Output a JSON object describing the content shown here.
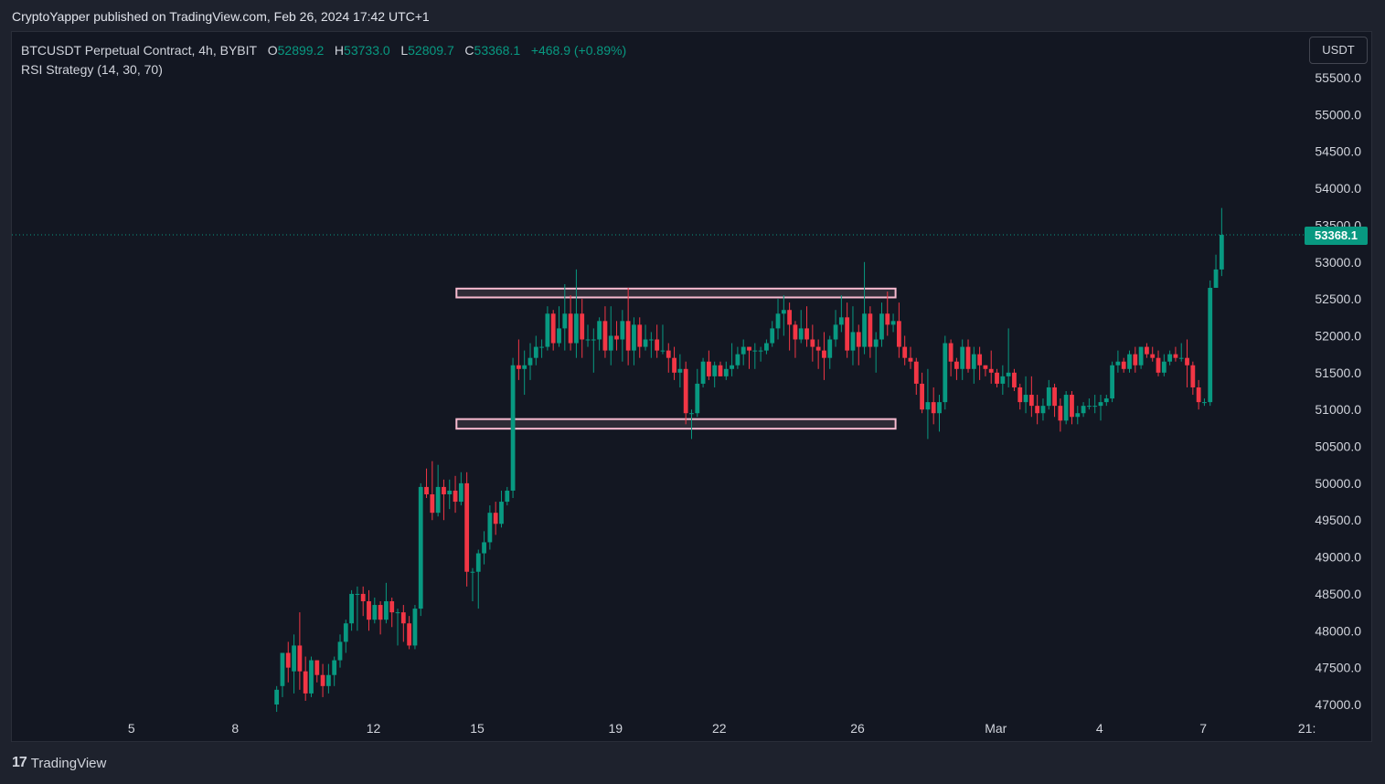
{
  "header": {
    "published_line": "CryptoYapper published on TradingView.com, Feb 26, 2024 17:42 UTC+1"
  },
  "legend": {
    "symbol_line": "BTCUSDT Perpetual Contract, 4h, BYBIT",
    "o_label": "O",
    "o_value": "52899.2",
    "h_label": "H",
    "h_value": "53733.0",
    "l_label": "L",
    "l_value": "52809.7",
    "c_label": "C",
    "c_value": "53368.1",
    "change": "+468.9 (+0.89%)",
    "indicator": "RSI Strategy (14, 30, 70)"
  },
  "currency_button": "USDT",
  "last_price_label": "53368.1",
  "footer": {
    "brand": "TradingView",
    "logo_glyph": "17"
  },
  "colors": {
    "up": "#089981",
    "down": "#f23645",
    "box_border": "#f8bbd0",
    "background": "#131722"
  },
  "chart_data": {
    "type": "candlestick",
    "symbol": "BTCUSDT",
    "interval": "4h",
    "ylim": [
      46850,
      55850
    ],
    "y_ticks": [
      47000,
      47500,
      48000,
      48500,
      49000,
      49500,
      50000,
      50500,
      51000,
      51500,
      52000,
      52500,
      53000,
      53500,
      54000,
      54500,
      55000,
      55500
    ],
    "y_tick_labels": [
      "47000.0",
      "47500.0",
      "48000.0",
      "48500.0",
      "49000.0",
      "49500.0",
      "50000.0",
      "50500.0",
      "51000.0",
      "51500.0",
      "52000.0",
      "52500.0",
      "53000.0",
      "53500.0",
      "54000.0",
      "54500.0",
      "55000.0",
      "55500.0"
    ],
    "x_tick_labels": [
      "5",
      "8",
      "12",
      "15",
      "19",
      "22",
      "26",
      "Mar",
      "4",
      "7",
      "21:"
    ],
    "x_tick_days": [
      5,
      8,
      12,
      15,
      19,
      22,
      26,
      30,
      33,
      36,
      39
    ],
    "last_price": 53368.1,
    "zones": [
      {
        "name": "resistance",
        "top": 52640,
        "bottom": 52520,
        "from_day": 14.4,
        "to_day": 27.1
      },
      {
        "name": "support",
        "top": 50870,
        "bottom": 50740,
        "from_day": 14.4,
        "to_day": 27.1
      }
    ],
    "candles": [
      [
        47000,
        47200,
        46900,
        47250
      ],
      [
        47250,
        47700,
        47100,
        47700
      ],
      [
        47700,
        47500,
        47300,
        47850
      ],
      [
        47450,
        47800,
        47150,
        47950
      ],
      [
        47800,
        47450,
        47200,
        48250
      ],
      [
        47450,
        47150,
        47050,
        47650
      ],
      [
        47150,
        47600,
        47100,
        47650
      ],
      [
        47600,
        47400,
        47300,
        47600
      ],
      [
        47400,
        47250,
        47100,
        47550
      ],
      [
        47250,
        47400,
        47150,
        47550
      ],
      [
        47400,
        47600,
        47250,
        47650
      ],
      [
        47600,
        47850,
        47500,
        47950
      ],
      [
        47850,
        48100,
        47700,
        48150
      ],
      [
        48100,
        48500,
        48000,
        48550
      ],
      [
        48500,
        48500,
        48000,
        48600
      ],
      [
        48500,
        48400,
        48200,
        48600
      ],
      [
        48400,
        48150,
        48000,
        48550
      ],
      [
        48150,
        48350,
        48100,
        48450
      ],
      [
        48350,
        48150,
        47950,
        48400
      ],
      [
        48150,
        48400,
        48100,
        48650
      ],
      [
        48400,
        48250,
        48050,
        48450
      ],
      [
        48250,
        48250,
        47800,
        48300
      ],
      [
        48250,
        48100,
        47850,
        48350
      ],
      [
        48100,
        47800,
        47750,
        48200
      ],
      [
        47800,
        48300,
        47750,
        48350
      ],
      [
        48300,
        49950,
        48200,
        50000
      ],
      [
        49950,
        49850,
        49800,
        50200
      ],
      [
        49850,
        49600,
        49500,
        50300
      ],
      [
        49600,
        49950,
        49550,
        50250
      ],
      [
        49950,
        49850,
        49500,
        50050
      ],
      [
        49850,
        49900,
        49650,
        50050
      ],
      [
        49900,
        49750,
        49600,
        50100
      ],
      [
        49750,
        50000,
        49700,
        50150
      ],
      [
        50000,
        48800,
        48600,
        50150
      ],
      [
        48800,
        48800,
        48400,
        48850
      ],
      [
        48800,
        49050,
        48300,
        49100
      ],
      [
        49050,
        49200,
        48900,
        49350
      ],
      [
        49200,
        49600,
        49100,
        49700
      ],
      [
        49600,
        49450,
        49300,
        49750
      ],
      [
        49450,
        49750,
        49400,
        49900
      ],
      [
        49750,
        49900,
        49700,
        49950
      ],
      [
        49900,
        51600,
        49800,
        51700
      ],
      [
        51600,
        51550,
        51400,
        51950
      ],
      [
        51550,
        51600,
        51200,
        51800
      ],
      [
        51600,
        51700,
        51400,
        51900
      ],
      [
        51700,
        51850,
        51600,
        52000
      ],
      [
        51850,
        51850,
        51700,
        51950
      ],
      [
        51850,
        52300,
        51800,
        52400
      ],
      [
        52300,
        51900,
        51800,
        52350
      ],
      [
        51900,
        52100,
        51850,
        52400
      ],
      [
        52100,
        52300,
        51800,
        52700
      ],
      [
        52300,
        51900,
        51800,
        52550
      ],
      [
        51900,
        52300,
        51700,
        52900
      ],
      [
        52300,
        51950,
        51700,
        52500
      ],
      [
        51950,
        51950,
        51850,
        52150
      ],
      [
        51950,
        51950,
        51500,
        52100
      ],
      [
        51950,
        52200,
        51800,
        52250
      ],
      [
        52200,
        51800,
        51700,
        52400
      ],
      [
        51800,
        52000,
        51600,
        52400
      ],
      [
        52000,
        51950,
        51800,
        52200
      ],
      [
        51950,
        52200,
        51650,
        52350
      ],
      [
        52200,
        51800,
        51600,
        52650
      ],
      [
        51800,
        52150,
        51600,
        52250
      ],
      [
        52150,
        51850,
        51700,
        52250
      ],
      [
        51850,
        51950,
        51800,
        52150
      ],
      [
        51950,
        51950,
        51700,
        52050
      ],
      [
        51950,
        51800,
        51700,
        52150
      ],
      [
        51800,
        51800,
        51750,
        52150
      ],
      [
        51800,
        51700,
        51500,
        51900
      ],
      [
        51700,
        51500,
        51400,
        51850
      ],
      [
        51500,
        51550,
        51300,
        51750
      ],
      [
        51550,
        50950,
        50800,
        51650
      ],
      [
        50950,
        50950,
        50600,
        51000
      ],
      [
        50950,
        51350,
        50900,
        51550
      ],
      [
        51350,
        51650,
        51300,
        51700
      ],
      [
        51650,
        51450,
        51400,
        51800
      ],
      [
        51450,
        51600,
        51300,
        51650
      ],
      [
        51600,
        51450,
        51450,
        51650
      ],
      [
        51450,
        51550,
        51400,
        51650
      ],
      [
        51550,
        51600,
        51450,
        51900
      ],
      [
        51600,
        51750,
        51550,
        51850
      ],
      [
        51750,
        51850,
        51600,
        51950
      ],
      [
        51850,
        51800,
        51550,
        51850
      ],
      [
        51800,
        51800,
        51550,
        51900
      ],
      [
        51800,
        51800,
        51650,
        51850
      ],
      [
        51800,
        51900,
        51750,
        51950
      ],
      [
        51900,
        52100,
        51850,
        52200
      ],
      [
        52100,
        52300,
        51950,
        52500
      ],
      [
        52300,
        52350,
        52000,
        52550
      ],
      [
        52350,
        52150,
        51800,
        52450
      ],
      [
        52150,
        51950,
        51700,
        52200
      ],
      [
        51950,
        52100,
        51900,
        52350
      ],
      [
        52100,
        51950,
        51850,
        52400
      ],
      [
        51950,
        51850,
        51650,
        52150
      ],
      [
        51850,
        51800,
        51550,
        51950
      ],
      [
        51800,
        51700,
        51400,
        52050
      ],
      [
        51700,
        51950,
        51550,
        52000
      ],
      [
        51950,
        52150,
        51850,
        52350
      ],
      [
        52150,
        52250,
        52050,
        52550
      ],
      [
        52250,
        51800,
        51700,
        52450
      ],
      [
        51800,
        52050,
        51600,
        52400
      ],
      [
        52050,
        51850,
        51600,
        52150
      ],
      [
        51850,
        52300,
        51750,
        53000
      ],
      [
        52300,
        51850,
        51700,
        52400
      ],
      [
        51850,
        51950,
        51500,
        52050
      ],
      [
        51950,
        52300,
        51850,
        52450
      ],
      [
        52300,
        52150,
        52000,
        52600
      ],
      [
        52150,
        52200,
        52050,
        52300
      ],
      [
        52200,
        51850,
        51700,
        52450
      ],
      [
        51850,
        51700,
        51600,
        52000
      ],
      [
        51700,
        51650,
        51550,
        51850
      ],
      [
        51650,
        51350,
        51200,
        51700
      ],
      [
        51350,
        51000,
        50950,
        51500
      ],
      [
        51000,
        51100,
        50600,
        51550
      ],
      [
        51100,
        50950,
        50800,
        51300
      ],
      [
        50950,
        51100,
        50700,
        51200
      ],
      [
        51100,
        51900,
        51000,
        52000
      ],
      [
        51900,
        51650,
        51450,
        51950
      ],
      [
        51650,
        51550,
        51400,
        51700
      ],
      [
        51550,
        51850,
        51400,
        51950
      ],
      [
        51850,
        51550,
        51500,
        51950
      ],
      [
        51550,
        51750,
        51350,
        51850
      ],
      [
        51750,
        51600,
        51400,
        51850
      ],
      [
        51600,
        51550,
        51450,
        51600
      ],
      [
        51550,
        51500,
        51350,
        51800
      ],
      [
        51500,
        51350,
        51300,
        51550
      ],
      [
        51350,
        51450,
        51200,
        51600
      ],
      [
        51450,
        51500,
        51300,
        52100
      ],
      [
        51500,
        51300,
        51250,
        51550
      ],
      [
        51300,
        51100,
        51000,
        51350
      ],
      [
        51100,
        51200,
        50950,
        51450
      ],
      [
        51200,
        51050,
        50900,
        51450
      ],
      [
        51050,
        50950,
        50800,
        51200
      ],
      [
        50950,
        51050,
        50850,
        51150
      ],
      [
        51050,
        51300,
        51000,
        51400
      ],
      [
        51300,
        51050,
        50900,
        51350
      ],
      [
        51050,
        50850,
        50700,
        51150
      ],
      [
        50850,
        51200,
        50800,
        51250
      ],
      [
        51200,
        50900,
        50800,
        51250
      ],
      [
        50900,
        50950,
        50800,
        51050
      ],
      [
        50950,
        51050,
        50900,
        51100
      ],
      [
        51050,
        51050,
        51000,
        51150
      ],
      [
        51050,
        51050,
        50950,
        51200
      ],
      [
        51050,
        51100,
        50850,
        51200
      ],
      [
        51100,
        51150,
        51050,
        51200
      ],
      [
        51150,
        51600,
        51100,
        51650
      ],
      [
        51600,
        51650,
        51500,
        51800
      ],
      [
        51650,
        51550,
        51500,
        51700
      ],
      [
        51550,
        51750,
        51500,
        51800
      ],
      [
        51750,
        51600,
        51500,
        51850
      ],
      [
        51600,
        51850,
        51550,
        51850
      ],
      [
        51850,
        51750,
        51700,
        51900
      ],
      [
        51750,
        51700,
        51650,
        51850
      ],
      [
        51700,
        51500,
        51450,
        51800
      ],
      [
        51500,
        51650,
        51450,
        51750
      ],
      [
        51650,
        51750,
        51600,
        51800
      ],
      [
        51750,
        51700,
        51650,
        51850
      ],
      [
        51700,
        51700,
        51650,
        51900
      ],
      [
        51700,
        51600,
        51300,
        51950
      ],
      [
        51600,
        51300,
        51200,
        51650
      ],
      [
        51300,
        51100,
        51000,
        51400
      ],
      [
        51100,
        51100,
        51050,
        51150
      ],
      [
        51100,
        52650,
        51050,
        52750
      ],
      [
        52650,
        52899.2,
        52650,
        53100
      ],
      [
        52899.2,
        53368.1,
        52809.7,
        53733.0
      ]
    ]
  }
}
